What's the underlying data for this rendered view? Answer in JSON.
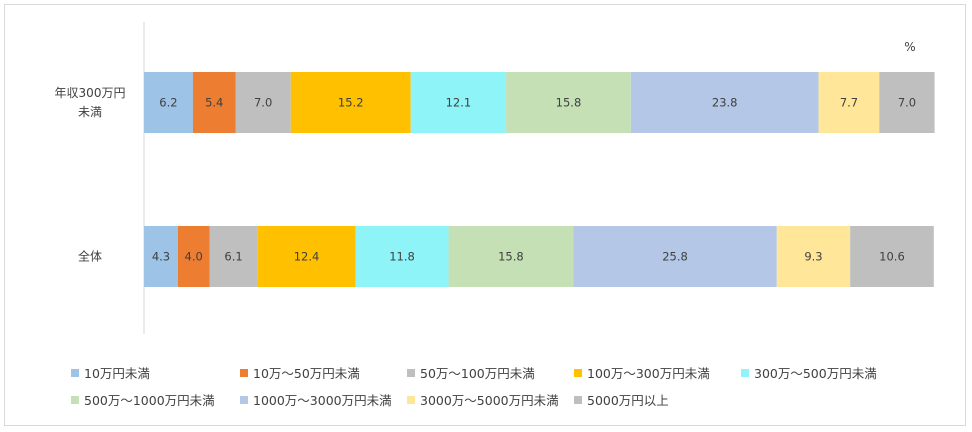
{
  "chart_data": {
    "type": "bar",
    "orientation": "horizontal",
    "stacked": true,
    "unit_label": "%",
    "categories": [
      "年収300万円\n未満",
      "全体"
    ],
    "series": [
      {
        "name": "10万円未満",
        "color": "#9dc3e6",
        "values": [
          6.2,
          4.3
        ]
      },
      {
        "name": "10万～50万円未満",
        "color": "#ed7d31",
        "values": [
          5.4,
          4.0
        ]
      },
      {
        "name": "50万～100万円未満",
        "color": "#bfbfbf",
        "values": [
          7.0,
          6.1
        ]
      },
      {
        "name": "100万～300万円未満",
        "color": "#ffc000",
        "values": [
          15.2,
          12.4
        ]
      },
      {
        "name": "300万～500万円未満",
        "color": "#8ef4f8",
        "values": [
          12.1,
          11.8
        ]
      },
      {
        "name": "500万～1000万円未満",
        "color": "#c5e0b4",
        "values": [
          15.8,
          15.8
        ]
      },
      {
        "name": "1000万～3000万円未満",
        "color": "#b4c7e7",
        "values": [
          23.8,
          25.8
        ]
      },
      {
        "name": "3000万～5000万円未満",
        "color": "#ffe699",
        "values": [
          7.7,
          9.3
        ]
      },
      {
        "name": "5000万円以上",
        "color": "#bfbfbf",
        "values": [
          7.0,
          10.6
        ]
      }
    ],
    "xlim": [
      0,
      100
    ],
    "grid": false,
    "legend_position": "bottom"
  }
}
